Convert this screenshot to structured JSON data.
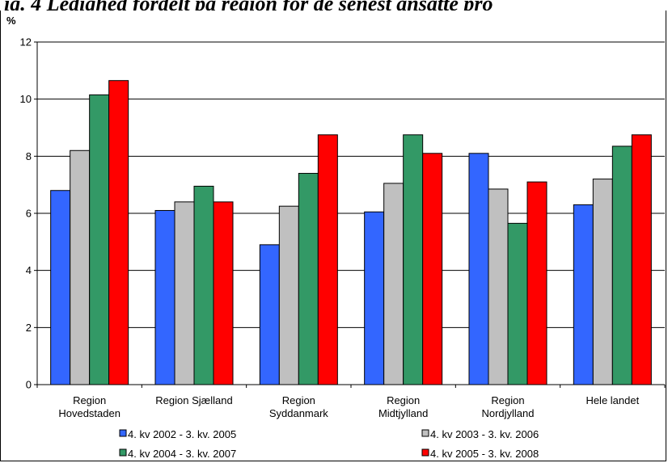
{
  "header": {
    "text": "ig. 4 Ledighed fordelt på region for de senest ansatte pro"
  },
  "chart_data": {
    "type": "bar",
    "title": "",
    "ylabel": "%",
    "xlabel": "",
    "ylim": [
      0,
      12
    ],
    "yticks": [
      0,
      2,
      4,
      6,
      8,
      10,
      12
    ],
    "grid": true,
    "legend_position": "bottom",
    "categories": [
      [
        "Region",
        "Hovedstaden"
      ],
      [
        "Region Sjælland"
      ],
      [
        "Region",
        "Syddanmark"
      ],
      [
        "Region",
        "Midtjylland"
      ],
      [
        "Region",
        "Nordjylland"
      ],
      [
        "Hele landet"
      ]
    ],
    "series": [
      {
        "name": "4. kv 2002 - 3. kv. 2005",
        "color": "#3366ff",
        "values": [
          6.8,
          6.1,
          4.9,
          6.05,
          8.1,
          6.3
        ]
      },
      {
        "name": "4. kv 2003 - 3. kv. 2006",
        "color": "#c0c0c0",
        "values": [
          8.2,
          6.4,
          6.25,
          7.05,
          6.85,
          7.2
        ]
      },
      {
        "name": "4. kv 2004 - 3. kv. 2007",
        "color": "#339966",
        "values": [
          10.15,
          6.95,
          7.4,
          8.75,
          5.65,
          8.35
        ]
      },
      {
        "name": "4. kv 2005 - 3. kv. 2008",
        "color": "#ff0000",
        "values": [
          10.65,
          6.4,
          8.75,
          8.1,
          7.1,
          8.75
        ]
      }
    ]
  }
}
